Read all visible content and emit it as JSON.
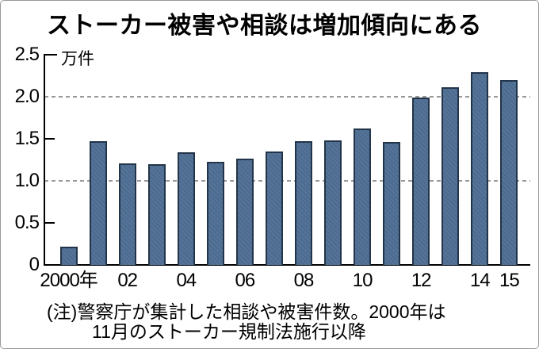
{
  "chart_data": {
    "type": "bar",
    "title": "ストーカー被害や相談は増加傾向にある",
    "unit_label": "万件",
    "xlabel": "",
    "ylabel": "万件",
    "ylim": [
      0,
      2.5
    ],
    "grid": "horizontal dashed lines at 1.0 and 2.0",
    "legend_position": "none",
    "categories": [
      "2000",
      "2001",
      "2002",
      "2003",
      "2004",
      "2005",
      "2006",
      "2007",
      "2008",
      "2009",
      "2010",
      "2011",
      "2012",
      "2013",
      "2014",
      "2015"
    ],
    "values": [
      0.22,
      1.47,
      1.21,
      1.2,
      1.34,
      1.23,
      1.26,
      1.35,
      1.47,
      1.48,
      1.62,
      1.46,
      1.99,
      2.11,
      2.29,
      2.2
    ],
    "y_ticks": [
      {
        "label": "2.5",
        "value": 2.5
      },
      {
        "label": "2.0",
        "value": 2.0
      },
      {
        "label": "1.5",
        "value": 1.5
      },
      {
        "label": "1.0",
        "value": 1.0
      },
      {
        "label": "0.5",
        "value": 0.5
      },
      {
        "label": "0",
        "value": 0
      }
    ],
    "x_ticks": [
      {
        "label": "2000年",
        "year": "2000"
      },
      {
        "label": "02",
        "year": "2002"
      },
      {
        "label": "04",
        "year": "2004"
      },
      {
        "label": "06",
        "year": "2006"
      },
      {
        "label": "08",
        "year": "2008"
      },
      {
        "label": "10",
        "year": "2010"
      },
      {
        "label": "12",
        "year": "2012"
      },
      {
        "label": "14",
        "year": "2014"
      },
      {
        "label": "15",
        "year": "2015"
      }
    ],
    "gridline_values": [
      2.0,
      1.0
    ],
    "inner_tick_values": [
      2.5,
      1.5,
      0.5
    ],
    "colors": {
      "bar_fill": "#4a6a8f",
      "bar_border": "#22344a",
      "gridline": "#999999",
      "axis": "#000000",
      "text": "#000000",
      "frame_border": "#999999",
      "background": "#ffffff"
    },
    "note_lines": [
      "(注)警察庁が集計した相談や被害件数。2000年は",
      "11月のストーカー規制法施行以降"
    ]
  }
}
